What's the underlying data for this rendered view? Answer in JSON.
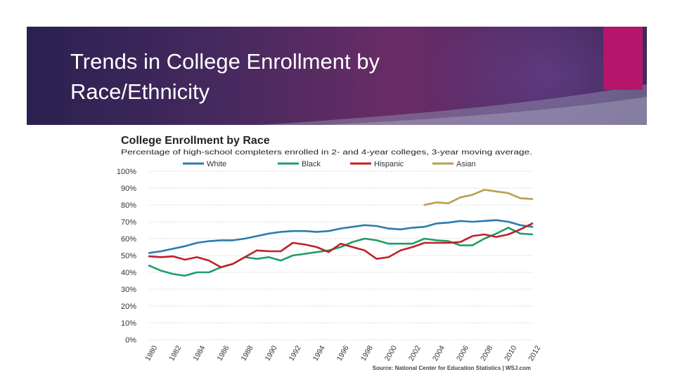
{
  "slide": {
    "title_line1": "Trends in College Enrollment by",
    "title_line2": "Race/Ethnicity",
    "accent_color": "#b5156b"
  },
  "chart_data": {
    "type": "line",
    "title": "College Enrollment by Race",
    "subtitle": "Percentage of high-school completers enrolled in 2- and 4-year colleges, 3-year moving average.",
    "source": "Source: National Center for Education Statistics  |  WSJ.com",
    "xlabel": "",
    "ylabel": "",
    "ylim": [
      0,
      100
    ],
    "y_ticks": [
      "0%",
      "10%",
      "20%",
      "30%",
      "40%",
      "50%",
      "60%",
      "70%",
      "80%",
      "90%",
      "100%"
    ],
    "x_ticks": [
      "1980",
      "1982",
      "1984",
      "1986",
      "1988",
      "1990",
      "1992",
      "1994",
      "1996",
      "1998",
      "2000",
      "2002",
      "2004",
      "2006",
      "2008",
      "2010",
      "2012"
    ],
    "series": [
      {
        "name": "White",
        "color": "#2a7ab0",
        "x": [
          1980,
          1981,
          1982,
          1983,
          1984,
          1985,
          1986,
          1987,
          1988,
          1989,
          1990,
          1991,
          1992,
          1993,
          1994,
          1995,
          1996,
          1997,
          1998,
          1999,
          2000,
          2001,
          2002,
          2003,
          2004,
          2005,
          2006,
          2007,
          2008,
          2009,
          2010,
          2011,
          2012
        ],
        "values": [
          51.5,
          52.5,
          54,
          55.5,
          57.5,
          58.5,
          59,
          59,
          60,
          61.5,
          63,
          64,
          64.5,
          64.5,
          64,
          64.5,
          66,
          67,
          68,
          67.5,
          66,
          65.5,
          66.5,
          67,
          69,
          69.5,
          70.5,
          70,
          70.5,
          71,
          70,
          68,
          67
        ]
      },
      {
        "name": "Black",
        "color": "#1f9d6a",
        "x": [
          1980,
          1981,
          1982,
          1983,
          1984,
          1985,
          1986,
          1987,
          1988,
          1989,
          1990,
          1991,
          1992,
          1993,
          1994,
          1995,
          1996,
          1997,
          1998,
          1999,
          2000,
          2001,
          2002,
          2003,
          2004,
          2005,
          2006,
          2007,
          2008,
          2009,
          2010,
          2011,
          2012
        ],
        "values": [
          44,
          41,
          39,
          38,
          40,
          40,
          43,
          45,
          49,
          48,
          49,
          47,
          50,
          51,
          52,
          53,
          55,
          58,
          60,
          59,
          57,
          57,
          57,
          60,
          59,
          58.5,
          56,
          56,
          60,
          63,
          66.5,
          63,
          62.5
        ]
      },
      {
        "name": "Hispanic",
        "color": "#c0202a",
        "x": [
          1980,
          1981,
          1982,
          1983,
          1984,
          1985,
          1986,
          1987,
          1988,
          1989,
          1990,
          1991,
          1992,
          1993,
          1994,
          1995,
          1996,
          1997,
          1998,
          1999,
          2000,
          2001,
          2002,
          2003,
          2004,
          2005,
          2006,
          2007,
          2008,
          2009,
          2010,
          2011,
          2012
        ],
        "values": [
          49.5,
          49,
          49.5,
          47.5,
          49,
          47,
          43,
          45,
          49,
          53,
          52.5,
          52.5,
          57.5,
          56.5,
          55,
          52,
          57,
          55,
          53,
          48,
          49,
          53,
          55,
          57.5,
          57.5,
          57.5,
          58,
          61.5,
          62.5,
          61,
          62.5,
          65.5,
          69
        ]
      },
      {
        "name": "Asian",
        "color": "#b8a04a",
        "x": [
          2003,
          2004,
          2005,
          2006,
          2007,
          2008,
          2009,
          2010,
          2011,
          2012
        ],
        "values": [
          80,
          81.5,
          81,
          84.5,
          86,
          89,
          88,
          87,
          84,
          83.5
        ]
      }
    ]
  }
}
